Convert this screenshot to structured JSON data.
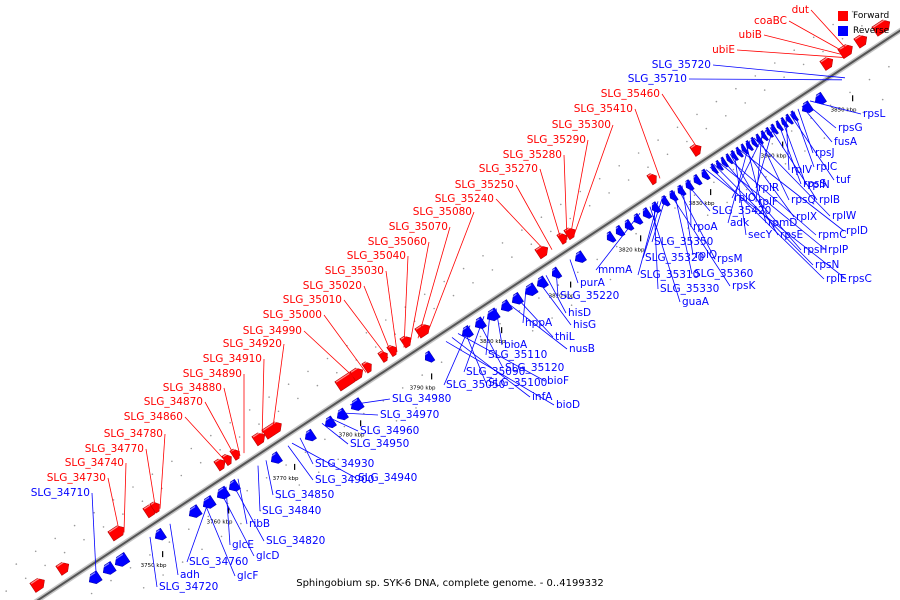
{
  "legend": {
    "forward": "Forward",
    "reverse": "Reverse",
    "forward_color": "#ff0000",
    "reverse_color": "#0000ff"
  },
  "caption": "Sphingobium sp. SYK-6 DNA, complete genome. - 0..4199332",
  "ticks": [
    "3750 kbp",
    "3760 kbp",
    "3770 kbp",
    "3780 kbp",
    "3790 kbp",
    "3800 kbp",
    "3810 kbp",
    "3820 kbp",
    "3830 kbp",
    "3840 kbp",
    "3850 kbp"
  ],
  "forward_labels": [
    "dut",
    "coaBC",
    "ubiB",
    "ubiE",
    "SLG_35460",
    "SLG_35410",
    "SLG_35300",
    "SLG_35290",
    "SLG_35280",
    "SLG_35270",
    "SLG_35250",
    "SLG_35240",
    "SLG_35080",
    "SLG_35070",
    "SLG_35060",
    "SLG_35040",
    "SLG_35030",
    "SLG_35020",
    "SLG_35010",
    "SLG_35000",
    "SLG_34990",
    "SLG_34920",
    "SLG_34910",
    "SLG_34890",
    "SLG_34880",
    "SLG_34870",
    "SLG_34860",
    "SLG_34780",
    "SLG_34770",
    "SLG_34740",
    "SLG_34730"
  ],
  "reverse_labels": [
    "SLG_35720",
    "SLG_35710",
    "rpsL",
    "rpsG",
    "fusA",
    "rpsJ",
    "rplC",
    "tuf",
    "rplV",
    "rplN",
    "rpsS",
    "rplR",
    "rplB",
    "rplO",
    "rplF",
    "rpsQ",
    "rplW",
    "adk",
    "rpmD",
    "rplX",
    "rplD",
    "secY",
    "rpsE",
    "rpmC",
    "rpsH",
    "rplP",
    "rpsN",
    "rplE",
    "rpsC",
    "rpoA",
    "SLG_35420",
    "rplQ",
    "rpsM",
    "SLG_35360",
    "rpsK",
    "SLG_35350",
    "SLG_35320",
    "SLG_35310",
    "SLG_35330",
    "guaA",
    "mnmA",
    "purA",
    "SLG_35220",
    "hisD",
    "hisG",
    "hppA",
    "thiL",
    "nusB",
    "bioA",
    "SLG_35110",
    "SLG_35090",
    "SLG_35120",
    "SLG_35050",
    "SLG_35100",
    "bioF",
    "infA",
    "bioD",
    "SLG_34980",
    "SLG_34970",
    "SLG_34960",
    "SLG_34950",
    "SLG_34930",
    "SLG_34940",
    "SLG_34900",
    "SLG_34850",
    "SLG_34840",
    "ribB",
    "SLG_34820",
    "glcE",
    "glcD",
    "SLG_34760",
    "glcF",
    "adh",
    "SLG_34720",
    "SLG_34710"
  ]
}
